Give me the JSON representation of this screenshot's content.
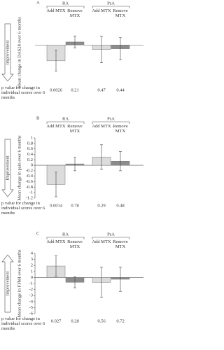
{
  "chart_data": [
    {
      "type": "bar",
      "panel": "A",
      "ylabel": "Mean change in DAS28 over 6 months",
      "annotation": "Improvement",
      "improvement_direction": "down",
      "groups": [
        "RA",
        "PsA"
      ],
      "categories": [
        "Add MTX",
        "Remove MTX",
        "Add MTX",
        "Remove MTX"
      ],
      "values": [
        -0.42,
        0.08,
        -0.12,
        -0.1
      ],
      "errors": [
        0.28,
        0.16,
        0.35,
        0.3
      ],
      "colors": [
        "#dcdcdc",
        "#8c8c8c",
        "#dcdcdc",
        "#8c8c8c"
      ],
      "ylim": [
        -1,
        0.6
      ],
      "p_label": "p value for change in individual scores over 6 months",
      "p_values": [
        0.0026,
        0.21,
        0.47,
        0.44
      ]
    },
    {
      "type": "bar",
      "panel": "B",
      "ylabel": "Mean change in pain over 6 months",
      "annotation": "Improvement",
      "improvement_direction": "down",
      "groups": [
        "RA",
        "PsA"
      ],
      "categories": [
        "Add MTX",
        "Remove MTX",
        "Add MTX",
        "Remove MTX"
      ],
      "values": [
        -0.7,
        0.05,
        0.3,
        0.15
      ],
      "errors": [
        0.45,
        0.25,
        0.45,
        0.35
      ],
      "colors": [
        "#dcdcdc",
        "#8c8c8c",
        "#dcdcdc",
        "#8c8c8c"
      ],
      "ylim": [
        -1.2,
        1
      ],
      "yticks": [
        1,
        0.8,
        0.6,
        0.4,
        0.2,
        0,
        -0.2,
        -0.4,
        -0.6,
        -0.8,
        -1,
        -1.2
      ],
      "p_label": "p value for change in individual scores over 6 months",
      "p_values": [
        0.0014,
        0.78,
        0.29,
        0.48
      ]
    },
    {
      "type": "bar",
      "panel": "C",
      "ylabel": "Mean change in FFbH over 6 months",
      "annotation": "Improvement",
      "improvement_direction": "up",
      "groups": [
        "RA",
        "PsA"
      ],
      "categories": [
        "Add MTX",
        "Remove MTX",
        "Add MTX",
        "Remove MTX"
      ],
      "values": [
        1.9,
        -0.8,
        -0.8,
        -0.3
      ],
      "errors": [
        1.7,
        0.9,
        2.5,
        2.0
      ],
      "colors": [
        "#dcdcdc",
        "#8c8c8c",
        "#dcdcdc",
        "#8c8c8c"
      ],
      "ylim": [
        -6,
        4
      ],
      "yticks": [
        4,
        3,
        2,
        1,
        0,
        -1,
        -2,
        -3,
        -4,
        -5,
        -6
      ],
      "p_label": "p value for change in individual scores over 6 months",
      "p_values": [
        0.027,
        0.28,
        0.56,
        0.72
      ]
    }
  ]
}
